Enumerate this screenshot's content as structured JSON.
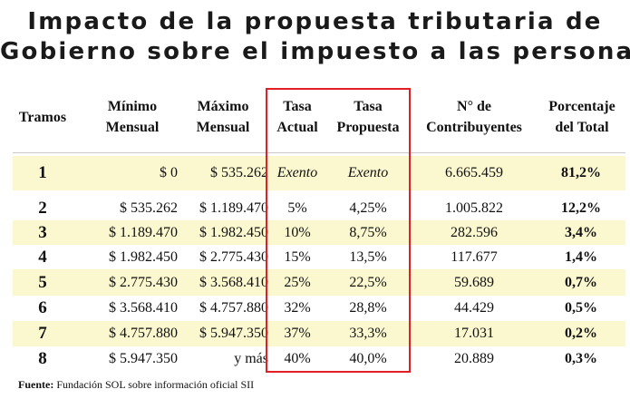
{
  "title": {
    "line1": "Impacto de la propuesta tributaria de",
    "line2": "Gobierno sobre el impuesto a las personas"
  },
  "columns": [
    {
      "line1": "Tramos",
      "line2": ""
    },
    {
      "line1": "Mínimo",
      "line2": "Mensual"
    },
    {
      "line1": "Máximo",
      "line2": "Mensual"
    },
    {
      "line1": "Tasa",
      "line2": "Actual"
    },
    {
      "line1": "Tasa",
      "line2": "Propuesta"
    },
    {
      "line1": "N° de",
      "line2": "Contribuyentes"
    },
    {
      "line1": "Porcentaje",
      "line2": "del Total"
    }
  ],
  "rows": [
    {
      "tramo": "1",
      "min": "$ 0",
      "max": "$ 535.262",
      "actual": "Exento",
      "propuesta": "Exento",
      "contribuyentes": "6.665.459",
      "porcentaje": "81,2%"
    },
    {
      "tramo": "2",
      "min": "$ 535.262",
      "max": "$ 1.189.470",
      "actual": "5%",
      "propuesta": "4,25%",
      "contribuyentes": "1.005.822",
      "porcentaje": "12,2%"
    },
    {
      "tramo": "3",
      "min": "$ 1.189.470",
      "max": "$ 1.982.450",
      "actual": "10%",
      "propuesta": "8,75%",
      "contribuyentes": "282.596",
      "porcentaje": "3,4%"
    },
    {
      "tramo": "4",
      "min": "$ 1.982.450",
      "max": "$ 2.775.430",
      "actual": "15%",
      "propuesta": "13,5%",
      "contribuyentes": "117.677",
      "porcentaje": "1,4%"
    },
    {
      "tramo": "5",
      "min": "$ 2.775.430",
      "max": "$ 3.568.410",
      "actual": "25%",
      "propuesta": "22,5%",
      "contribuyentes": "59.689",
      "porcentaje": "0,7%"
    },
    {
      "tramo": "6",
      "min": "$ 3.568.410",
      "max": "$ 4.757.880",
      "actual": "32%",
      "propuesta": "28,8%",
      "contribuyentes": "44.429",
      "porcentaje": "0,5%"
    },
    {
      "tramo": "7",
      "min": "$ 4.757.880",
      "max": "$ 5.947.350",
      "actual": "37%",
      "propuesta": "33,3%",
      "contribuyentes": "17.031",
      "porcentaje": "0,2%"
    },
    {
      "tramo": "8",
      "min": "$ 5.947.350",
      "max": "y más",
      "actual": "40%",
      "propuesta": "40,0%",
      "contribuyentes": "20.889",
      "porcentaje": "0,3%"
    }
  ],
  "source": {
    "label": "Fuente:",
    "text": " Fundación SOL sobre información oficial SII"
  },
  "colors": {
    "highlight_box": "#e21f26",
    "alt_row_fill": "#fbf8cf"
  }
}
